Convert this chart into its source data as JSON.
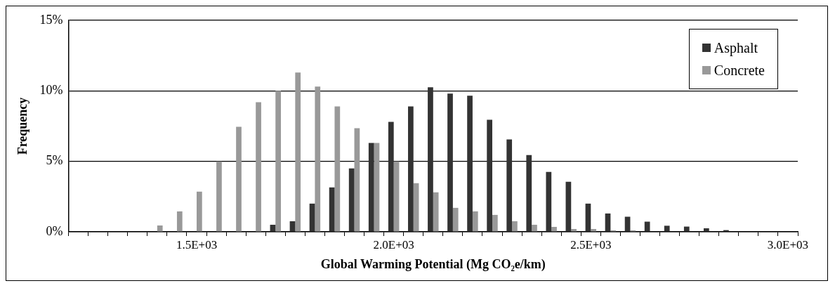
{
  "chart_data": {
    "type": "bar",
    "xlabel": "Global Warming Potential (Mg CO₂e/km)",
    "ylabel": "Frequency",
    "categories": [
      null,
      null,
      null,
      null,
      null,
      null,
      "1.5E+03",
      null,
      null,
      null,
      null,
      null,
      null,
      null,
      null,
      null,
      "2.0E+03",
      null,
      null,
      null,
      null,
      null,
      null,
      null,
      null,
      null,
      "2.5E+03",
      null,
      null,
      null,
      null,
      null,
      null,
      null,
      null,
      null,
      "3.0E+03"
    ],
    "series": [
      {
        "name": "Asphalt",
        "color": "#333333",
        "values": [
          0,
          0,
          0,
          0,
          0,
          0,
          0,
          0,
          0,
          null,
          0.5,
          0.75,
          2.0,
          3.15,
          4.5,
          6.3,
          7.8,
          8.9,
          10.25,
          9.8,
          9.65,
          7.95,
          6.55,
          5.45,
          4.25,
          3.55,
          2.0,
          1.3,
          1.07,
          0.72,
          0.43,
          0.37,
          0.25,
          0.12,
          0.03,
          0.03,
          null
        ]
      },
      {
        "name": "Concrete",
        "color": "#999999",
        "values": [
          0,
          0,
          0,
          null,
          0.45,
          1.45,
          2.85,
          5.0,
          7.45,
          9.2,
          10.0,
          11.3,
          10.3,
          8.9,
          7.35,
          6.3,
          5.0,
          3.45,
          2.8,
          1.7,
          1.45,
          1.2,
          0.75,
          0.5,
          0.35,
          0.2,
          0.2,
          0.1,
          0.1,
          null,
          0,
          0,
          0,
          0,
          0,
          0,
          0
        ]
      }
    ],
    "ylim": [
      0,
      15
    ],
    "yticks": [
      {
        "value": 0,
        "label": "0%"
      },
      {
        "value": 5,
        "label": "5%"
      },
      {
        "value": 10,
        "label": "10%"
      },
      {
        "value": 15,
        "label": "15%"
      }
    ],
    "grid": "y",
    "legend": "top right"
  }
}
